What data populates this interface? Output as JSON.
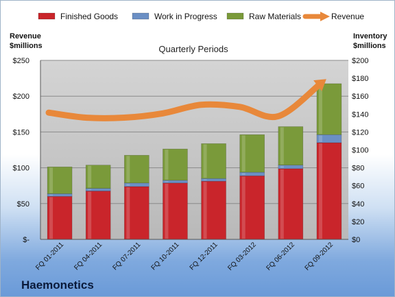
{
  "company": "Haemonetics",
  "chart_data": {
    "type": "bar",
    "stacked": true,
    "title": "Quarterly Periods",
    "left_axis_label": [
      "Revenue",
      "$millions"
    ],
    "right_axis_label": [
      "Inventory",
      "$millions"
    ],
    "categories": [
      "FQ 01-2011",
      "FQ 04-2011",
      "FQ 07-2011",
      "FQ 10-2011",
      "FQ 12-2011",
      "FQ 03-2012",
      "FQ 06-2012",
      "FQ 09-2012"
    ],
    "series": [
      {
        "name": "Finished Goods",
        "axis": "right",
        "kind": "bar",
        "color": "#c9252b",
        "values": [
          48,
          54,
          59,
          63,
          65,
          71,
          79,
          108
        ]
      },
      {
        "name": "Work in Progress",
        "axis": "right",
        "kind": "bar",
        "color": "#6b8fc4",
        "values": [
          3,
          3,
          4,
          3,
          3,
          4,
          4,
          9
        ]
      },
      {
        "name": "Raw Materials",
        "axis": "right",
        "kind": "bar",
        "color": "#7a9a3a",
        "values": [
          30,
          26,
          31,
          35,
          39,
          42,
          43,
          57
        ]
      },
      {
        "name": "Revenue",
        "axis": "left",
        "kind": "line",
        "color": "#e8883a",
        "values": [
          177,
          170,
          170,
          176,
          188,
          185,
          172,
          218
        ]
      }
    ],
    "left_axis": {
      "min": 0,
      "max": 250,
      "step": 50,
      "tick_labels": [
        "$-",
        "$50",
        "$100",
        "$150",
        "$200",
        "$250"
      ]
    },
    "right_axis": {
      "min": 0,
      "max": 200,
      "step": 20,
      "tick_labels": [
        "$0",
        "$20",
        "$40",
        "$60",
        "$80",
        "$100",
        "$120",
        "$140",
        "$160",
        "$180",
        "$200"
      ]
    },
    "legend": "top",
    "grid": true
  }
}
